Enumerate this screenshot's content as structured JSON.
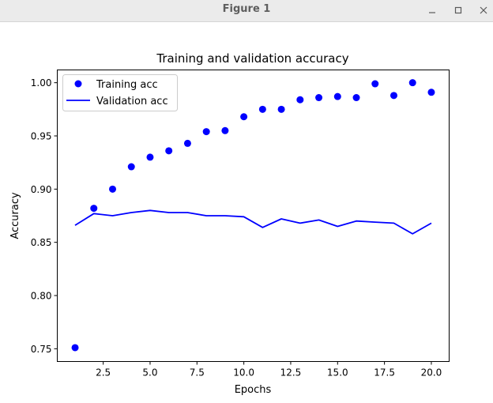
{
  "window": {
    "title": "Figure 1",
    "controls": [
      "minimize-icon",
      "maximize-icon",
      "close-icon"
    ]
  },
  "chart_data": {
    "type": "line",
    "title": "Training and validation accuracy",
    "xlabel": "Epochs",
    "ylabel": "Accuracy",
    "xlim": [
      0.05,
      20.95
    ],
    "ylim": [
      0.738,
      1.012
    ],
    "xticks": [
      2.5,
      5.0,
      7.5,
      10.0,
      12.5,
      15.0,
      17.5,
      20.0
    ],
    "xtick_labels": [
      "2.5",
      "5.0",
      "7.5",
      "10.0",
      "12.5",
      "15.0",
      "17.5",
      "20.0"
    ],
    "yticks": [
      0.75,
      0.8,
      0.85,
      0.9,
      0.95,
      1.0
    ],
    "ytick_labels": [
      "0.75",
      "0.80",
      "0.85",
      "0.90",
      "0.95",
      "1.00"
    ],
    "grid": false,
    "legend_position": "upper-left",
    "x": [
      1,
      2,
      3,
      4,
      5,
      6,
      7,
      8,
      9,
      10,
      11,
      12,
      13,
      14,
      15,
      16,
      17,
      18,
      19,
      20
    ],
    "series": [
      {
        "name": "Training acc",
        "style": "points",
        "color": "#0000ff",
        "values": [
          0.751,
          0.882,
          0.9,
          0.921,
          0.93,
          0.936,
          0.943,
          0.954,
          0.955,
          0.968,
          0.975,
          0.975,
          0.984,
          0.986,
          0.987,
          0.986,
          0.999,
          0.988,
          1.0,
          0.991
        ]
      },
      {
        "name": "Validation acc",
        "style": "line",
        "color": "#0000ff",
        "values": [
          0.866,
          0.877,
          0.875,
          0.878,
          0.88,
          0.878,
          0.878,
          0.875,
          0.875,
          0.874,
          0.864,
          0.872,
          0.868,
          0.871,
          0.865,
          0.87,
          0.869,
          0.868,
          0.858,
          0.868
        ]
      }
    ]
  }
}
